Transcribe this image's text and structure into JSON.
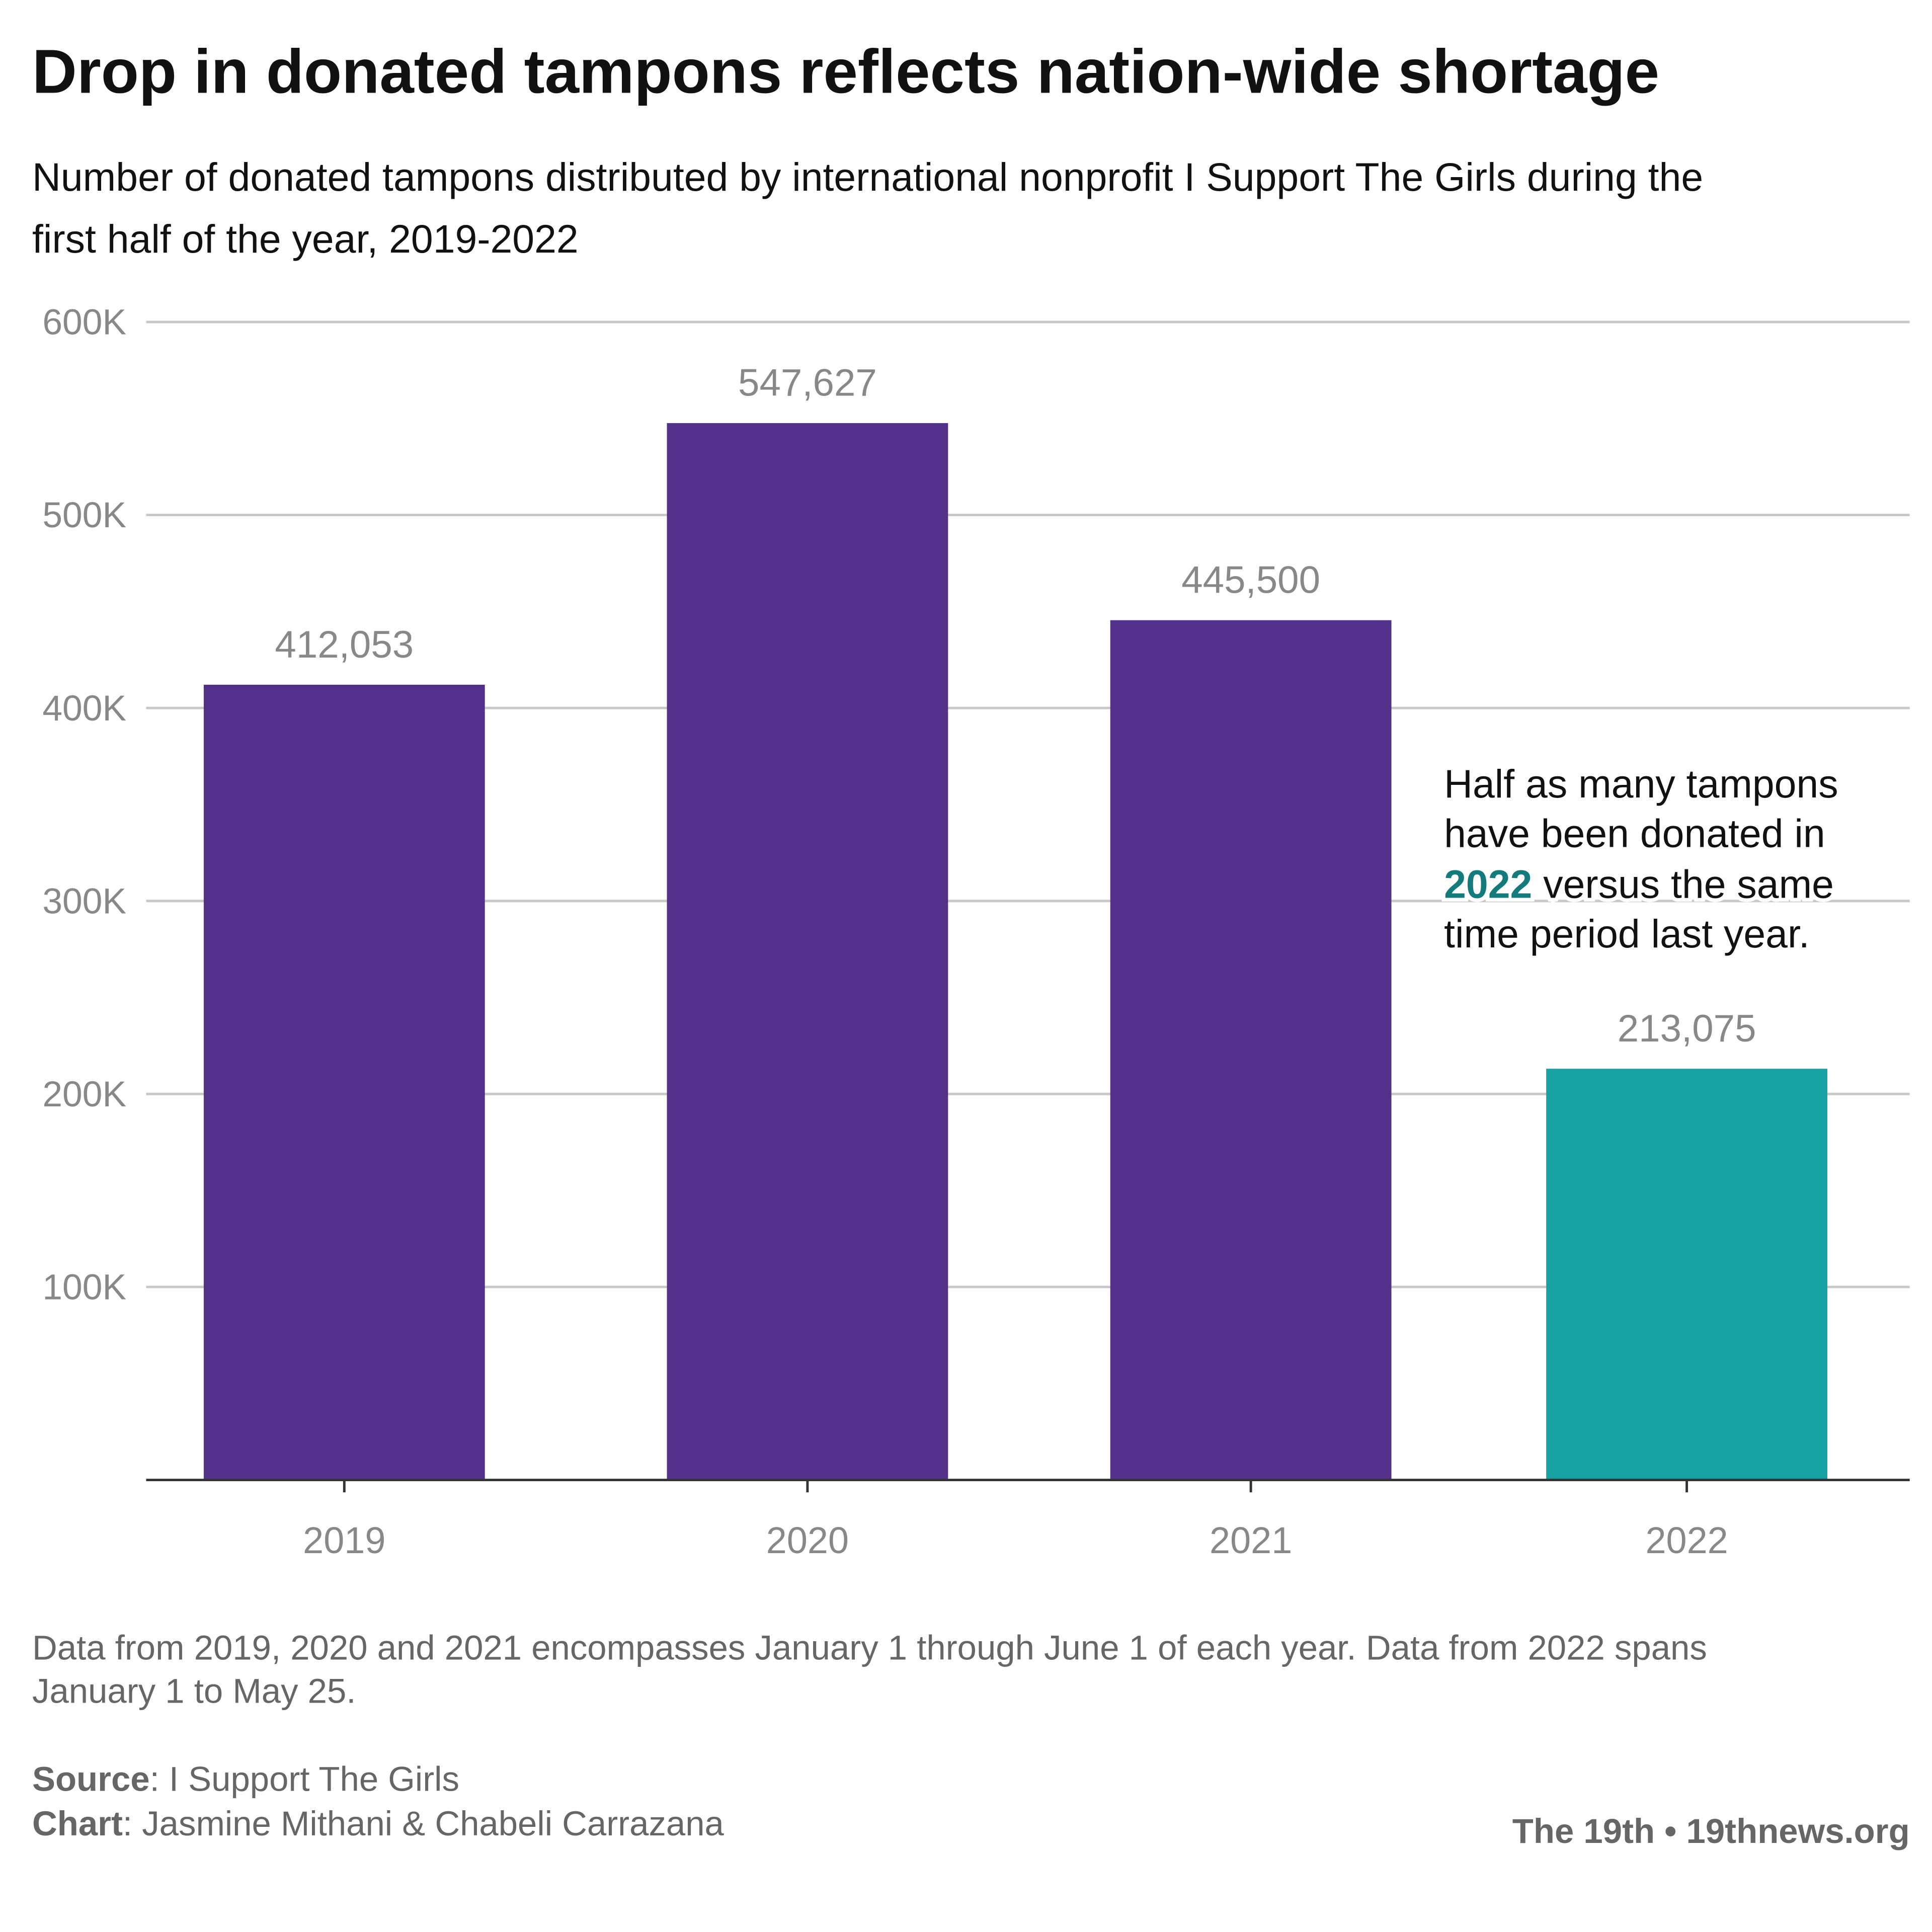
{
  "title": "Drop in donated tampons reflects nation-wide shortage",
  "subtitle_lines": [
    "Number of donated tampons distributed by international nonprofit I Support The Girls during the",
    "first half of the year, 2019-2022"
  ],
  "chart_data": {
    "type": "bar",
    "categories": [
      "2019",
      "2020",
      "2021",
      "2022"
    ],
    "values": [
      412053,
      547627,
      445500,
      213075
    ],
    "value_labels": [
      "412,053",
      "547,627",
      "445,500",
      "213,075"
    ],
    "colors": [
      "#51318a",
      "#51318a",
      "#51318a",
      "#17a2a1"
    ],
    "ylim": [
      0,
      600000
    ],
    "yticks": [
      100000,
      200000,
      300000,
      400000,
      500000,
      600000
    ],
    "ytick_labels": [
      "100K",
      "200K",
      "300K",
      "400K",
      "500K",
      "600K"
    ],
    "grid": true,
    "xlabel": "",
    "ylabel": ""
  },
  "annotation": {
    "line1": "Half as many tampons",
    "line2": "have been donated in",
    "highlight": "2022",
    "line3_rest": " versus the same",
    "line4": "time period last year.",
    "highlight_color": "#137b7b"
  },
  "footer": {
    "note_lines": [
      "Data from 2019, 2020 and 2021 encompasses January 1 through June 1 of each year. Data from 2022 spans",
      "January 1 to May 25."
    ],
    "source_label": "Source",
    "source_value": ": I Support The Girls",
    "chart_label": "Chart",
    "chart_value": ": Jasmine Mithani & Chabeli Carrazana",
    "brand": "The 19th • 19thnews.org"
  }
}
